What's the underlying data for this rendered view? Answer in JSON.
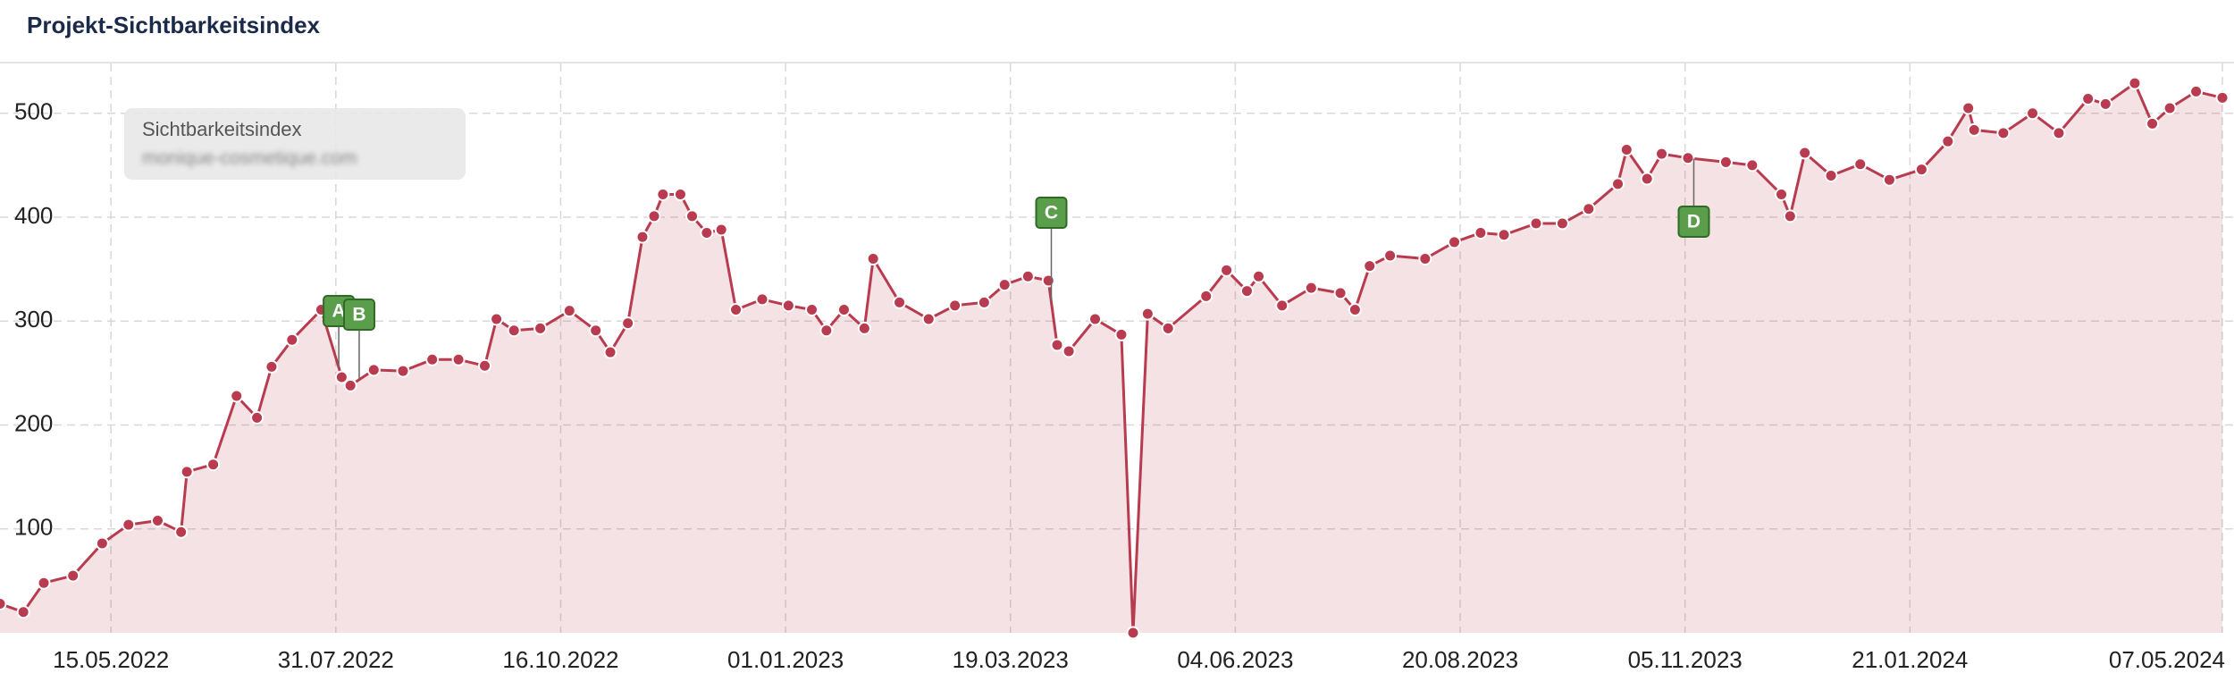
{
  "chart_data": {
    "type": "area",
    "title": "Projekt-Sichtbarkeitsindex",
    "legend_title": "Sichtbarkeitsindex",
    "legend_subtitle": "monique-cosmetique.com",
    "x": [
      "2022-04-07",
      "2022-04-15",
      "2022-04-22",
      "2022-05-02",
      "2022-05-12",
      "2022-05-21",
      "2022-05-31",
      "2022-06-08",
      "2022-06-10",
      "2022-06-19",
      "2022-06-27",
      "2022-07-04",
      "2022-07-09",
      "2022-07-16",
      "2022-07-26",
      "2022-08-02",
      "2022-08-05",
      "2022-08-13",
      "2022-08-23",
      "2022-09-02",
      "2022-09-11",
      "2022-09-20",
      "2022-09-24",
      "2022-09-30",
      "2022-10-09",
      "2022-10-19",
      "2022-10-28",
      "2022-11-02",
      "2022-11-08",
      "2022-11-13",
      "2022-11-17",
      "2022-11-20",
      "2022-11-26",
      "2022-11-30",
      "2022-12-05",
      "2022-12-10",
      "2022-12-15",
      "2022-12-24",
      "2023-01-02",
      "2023-01-10",
      "2023-01-15",
      "2023-01-21",
      "2023-01-28",
      "2023-01-31",
      "2023-02-09",
      "2023-02-19",
      "2023-02-28",
      "2023-03-10",
      "2023-03-17",
      "2023-03-25",
      "2023-04-01",
      "2023-04-04",
      "2023-04-08",
      "2023-04-17",
      "2023-04-26",
      "2023-04-30",
      "2023-05-05",
      "2023-05-12",
      "2023-05-25",
      "2023-06-01",
      "2023-06-08",
      "2023-06-12",
      "2023-06-20",
      "2023-06-30",
      "2023-07-10",
      "2023-07-15",
      "2023-07-20",
      "2023-07-27",
      "2023-08-08",
      "2023-08-18",
      "2023-08-27",
      "2023-09-04",
      "2023-09-15",
      "2023-09-24",
      "2023-10-03",
      "2023-10-13",
      "2023-10-16",
      "2023-10-23",
      "2023-10-28",
      "2023-11-06",
      "2023-11-19",
      "2023-11-28",
      "2023-12-08",
      "2023-12-11",
      "2023-12-16",
      "2023-12-25",
      "2024-01-04",
      "2024-01-14",
      "2024-01-25",
      "2024-02-03",
      "2024-02-10",
      "2024-02-12",
      "2024-02-22",
      "2024-03-03",
      "2024-03-12",
      "2024-03-22",
      "2024-03-28",
      "2024-04-07",
      "2024-04-13",
      "2024-04-19",
      "2024-04-28",
      "2024-05-07"
    ],
    "series": [
      {
        "name": "Sichtbarkeitsindex",
        "color": "#b83b4f",
        "values": [
          28,
          20,
          48,
          55,
          86,
          104,
          108,
          97,
          155,
          162,
          228,
          207,
          256,
          282,
          311,
          246,
          238,
          253,
          252,
          263,
          263,
          257,
          302,
          291,
          293,
          310,
          291,
          270,
          298,
          381,
          401,
          422,
          422,
          401,
          385,
          388,
          311,
          321,
          315,
          311,
          291,
          311,
          293,
          360,
          318,
          302,
          315,
          318,
          335,
          343,
          339,
          277,
          271,
          302,
          287,
          0,
          307,
          293,
          324,
          349,
          329,
          343,
          315,
          332,
          327,
          311,
          353,
          363,
          360,
          376,
          385,
          383,
          394,
          394,
          408,
          432,
          465,
          437,
          461,
          457,
          453,
          450,
          422,
          401,
          462,
          440,
          451,
          436,
          446,
          473,
          505,
          484,
          481,
          500,
          481,
          514,
          509,
          529,
          490,
          505,
          521,
          515
        ]
      }
    ],
    "events": [
      {
        "label": "A",
        "x": "2022-08-01"
      },
      {
        "label": "B",
        "x": "2022-08-08"
      },
      {
        "label": "C",
        "x": "2023-04-02"
      },
      {
        "label": "D",
        "x": "2023-11-08"
      }
    ],
    "xlim": [
      "2022-04-07",
      "2024-05-07"
    ],
    "xticks": [
      {
        "value": "2022-05-15",
        "label": "15.05.2022"
      },
      {
        "value": "2022-07-31",
        "label": "31.07.2022"
      },
      {
        "value": "2022-10-16",
        "label": "16.10.2022"
      },
      {
        "value": "2023-01-01",
        "label": "01.01.2023"
      },
      {
        "value": "2023-03-19",
        "label": "19.03.2023"
      },
      {
        "value": "2023-06-04",
        "label": "04.06.2023"
      },
      {
        "value": "2023-08-20",
        "label": "20.08.2023"
      },
      {
        "value": "2023-11-05",
        "label": "05.11.2023"
      },
      {
        "value": "2024-01-21",
        "label": "21.01.2024"
      },
      {
        "value": "2024-05-07",
        "label": "07.05.2024"
      }
    ],
    "ylim": [
      0,
      548
    ],
    "yticks": [
      100,
      200,
      300,
      400,
      500
    ],
    "grid": true
  }
}
